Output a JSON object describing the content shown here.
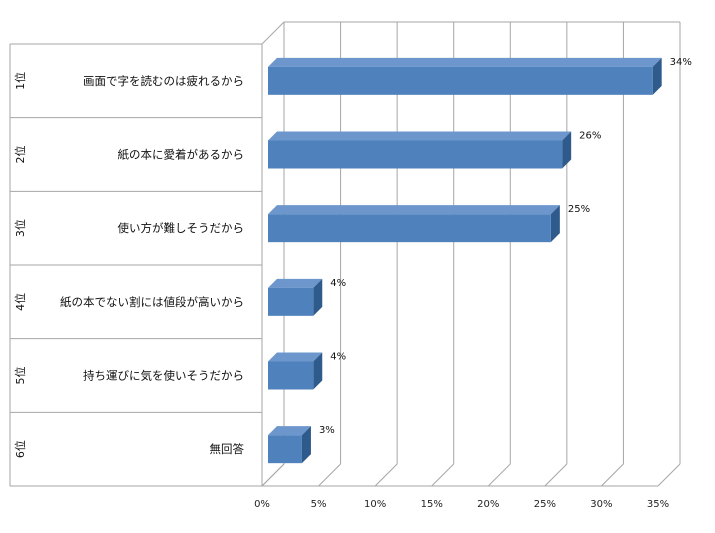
{
  "chart_data": {
    "type": "bar",
    "orientation": "horizontal",
    "ranks": [
      "1位",
      "2位",
      "3位",
      "4位",
      "5位",
      "6位"
    ],
    "categories": [
      "画面で字を読むのは疲れるから",
      "紙の本に愛着があるから",
      "使い方が難しそうだから",
      "紙の本でない割には値段が高いから",
      "持ち運びに気を使いそうだから",
      "無回答"
    ],
    "values": [
      34,
      26,
      25,
      4,
      4,
      3
    ],
    "value_labels": [
      "34%",
      "26%",
      "25%",
      "4%",
      "4%",
      "3%"
    ],
    "x_ticks": [
      "0%",
      "5%",
      "10%",
      "15%",
      "20%",
      "25%",
      "30%",
      "35%"
    ],
    "xlim": [
      0,
      35
    ],
    "grid": true,
    "legend": "none",
    "colors": {
      "bar_front": "#4f81bd",
      "bar_top": "#6d97cc",
      "bar_side": "#2f5a8c",
      "grid": "#a6a6a6"
    }
  }
}
